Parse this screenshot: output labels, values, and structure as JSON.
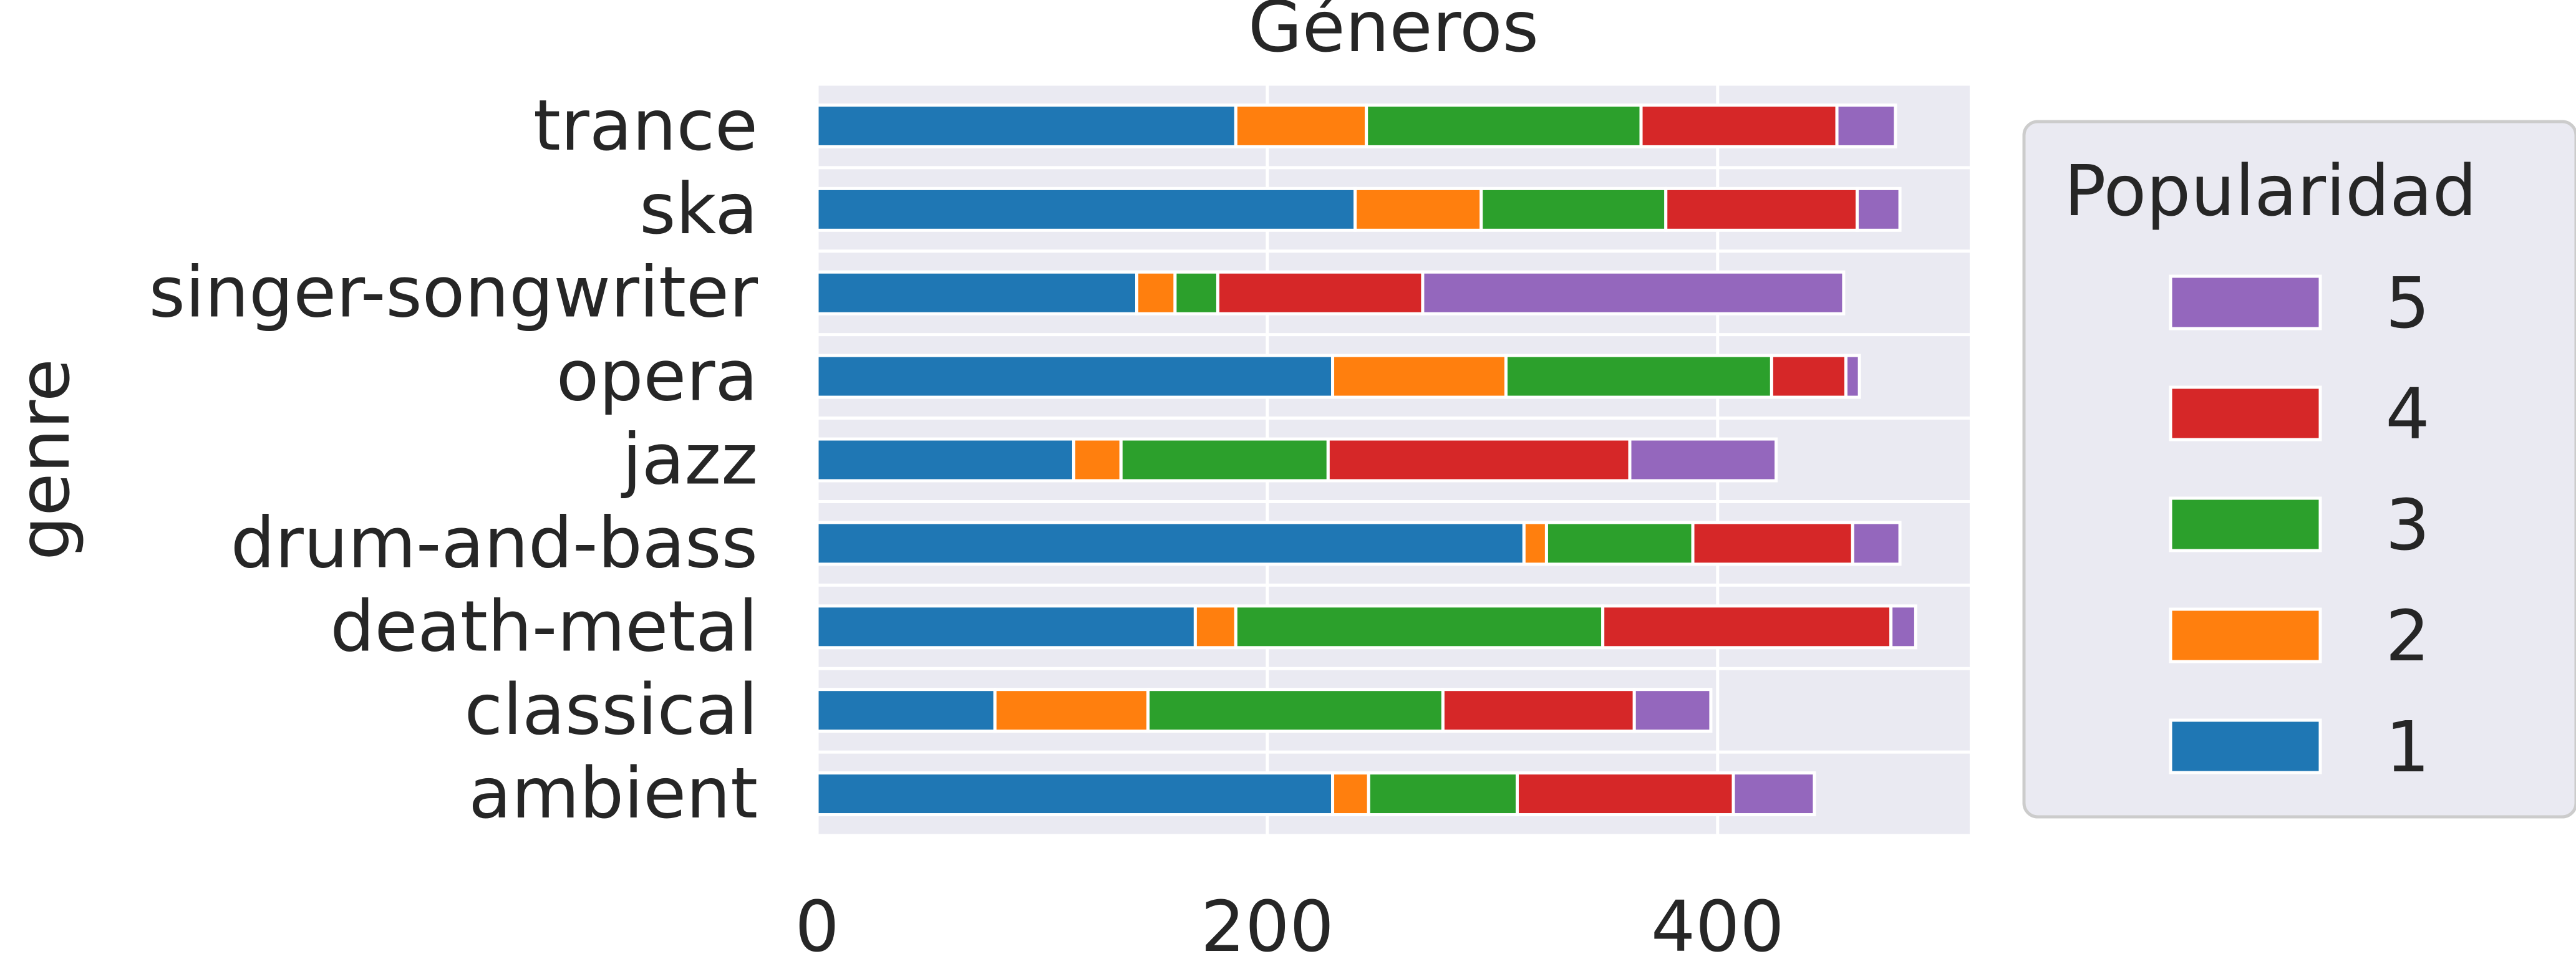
{
  "chart_data": {
    "type": "bar",
    "orientation": "horizontal",
    "stacked": true,
    "title": "Géneros",
    "xlabel": "",
    "ylabel": "genre",
    "xlim": [
      0,
      512
    ],
    "xticks": [
      0,
      200,
      400
    ],
    "categories": [
      "ambient",
      "classical",
      "death-metal",
      "drum-and-bass",
      "jazz",
      "opera",
      "singer-songwriter",
      "ska",
      "trance"
    ],
    "legend": {
      "title": "Popularidad",
      "position": "right"
    },
    "grid": true,
    "series": [
      {
        "name": "1",
        "color": "#1f77b4",
        "values": [
          229,
          79,
          168,
          314,
          114,
          229,
          142,
          239,
          186
        ]
      },
      {
        "name": "2",
        "color": "#ff7f0e",
        "values": [
          16,
          68,
          18,
          10,
          21,
          77,
          17,
          56,
          58
        ]
      },
      {
        "name": "3",
        "color": "#2ca02c",
        "values": [
          66,
          131,
          163,
          65,
          92,
          118,
          19,
          82,
          122
        ]
      },
      {
        "name": "4",
        "color": "#d62728",
        "values": [
          96,
          85,
          128,
          71,
          134,
          33,
          91,
          85,
          87
        ]
      },
      {
        "name": "5",
        "color": "#9467bd",
        "values": [
          36,
          34,
          11,
          21,
          65,
          6,
          187,
          19,
          26
        ]
      }
    ]
  }
}
